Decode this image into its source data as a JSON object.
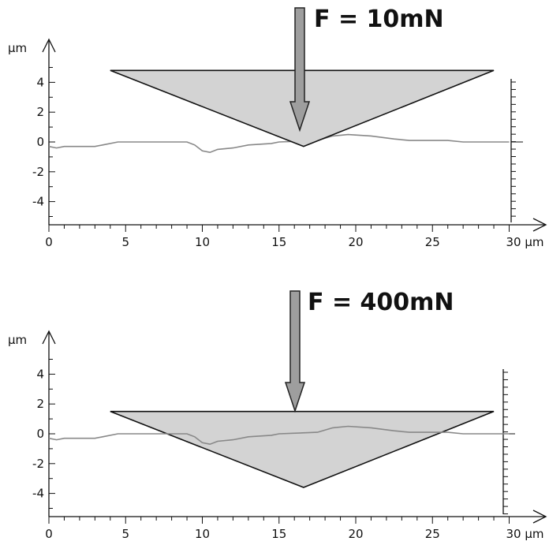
{
  "panels": [
    {
      "id": "top",
      "force_label": "F = 10mN",
      "y_unit": "µm",
      "x_unit": "30 µm",
      "x_ticks": [
        "0",
        "5",
        "10",
        "15",
        "20",
        "25"
      ],
      "y_ticks": [
        "4",
        "2",
        "0",
        "-2",
        "-4"
      ],
      "indenter": {
        "apex_depth_um": -0.3,
        "top_um": 4.8,
        "left_um": 4,
        "right_um": 29
      }
    },
    {
      "id": "bottom",
      "force_label": "F = 400mN",
      "y_unit": "µm",
      "x_unit": "30 µm",
      "x_ticks": [
        "0",
        "5",
        "10",
        "15",
        "20",
        "25"
      ],
      "y_ticks": [
        "4",
        "2",
        "0",
        "-2",
        "-4"
      ],
      "indenter": {
        "apex_depth_um": -3.6,
        "top_um": 1.5,
        "left_um": 4,
        "right_um": 29
      }
    }
  ],
  "surface_profile_um": [
    [
      0,
      -0.3
    ],
    [
      0.5,
      -0.4
    ],
    [
      1,
      -0.3
    ],
    [
      3,
      -0.3
    ],
    [
      3.5,
      -0.2
    ],
    [
      4.5,
      0.0
    ],
    [
      9,
      0.0
    ],
    [
      9.5,
      -0.2
    ],
    [
      10,
      -0.6
    ],
    [
      10.5,
      -0.7
    ],
    [
      11,
      -0.5
    ],
    [
      12,
      -0.4
    ],
    [
      13,
      -0.2
    ],
    [
      14.5,
      -0.1
    ],
    [
      15,
      0.0
    ],
    [
      17.5,
      0.1
    ],
    [
      18.5,
      0.4
    ],
    [
      19.5,
      0.5
    ],
    [
      21,
      0.4
    ],
    [
      22.5,
      0.2
    ],
    [
      23.5,
      0.1
    ],
    [
      25,
      0.1
    ],
    [
      26,
      0.1
    ],
    [
      27,
      0.0
    ],
    [
      30,
      0.0
    ]
  ],
  "colors": {
    "indenter_fill": "#d3d3d3",
    "arrow_fill": "#9e9e9e",
    "profile": "#888888",
    "axes": "#111111"
  }
}
